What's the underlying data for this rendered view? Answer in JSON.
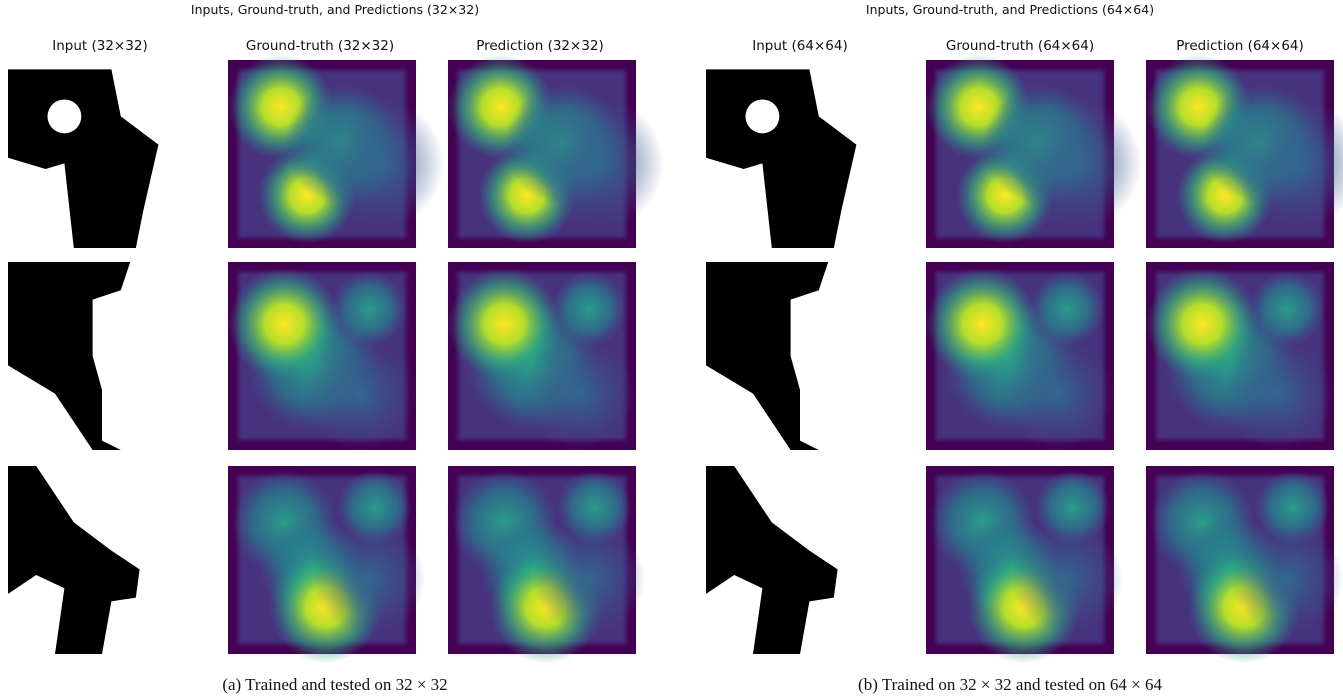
{
  "panels": [
    {
      "title": "Inputs, Ground-truth, and Predictions (32×32)",
      "columns": [
        "Input (32×32)",
        "Ground-truth (32×32)",
        "Prediction (32×32)"
      ],
      "caption": "(a) Trained and tested on 32 × 32"
    },
    {
      "title": "Inputs, Ground-truth, and Predictions (64×64)",
      "columns": [
        "Input (64×64)",
        "Ground-truth (64×64)",
        "Prediction (64×64)"
      ],
      "caption": "(b) Trained on 32 × 32 and tested on 64 × 64"
    }
  ]
}
